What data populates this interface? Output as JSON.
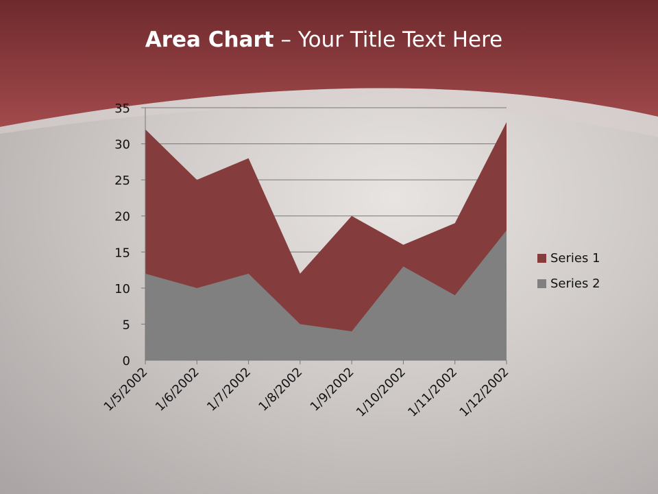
{
  "slide": {
    "title_bold": "Area Chart",
    "title_rest": " – Your Title Text Here"
  },
  "colors": {
    "header": "#8c3a3c",
    "series1": "#843c3c",
    "series2": "#808080"
  },
  "chart_data": {
    "type": "area",
    "categories": [
      "1/5/2002",
      "1/6/2002",
      "1/7/2002",
      "1/8/2002",
      "1/9/2002",
      "1/10/2002",
      "1/11/2002",
      "1/12/2002"
    ],
    "series": [
      {
        "name": "Series 1",
        "values": [
          32,
          25,
          28,
          12,
          20,
          16,
          19,
          33
        ]
      },
      {
        "name": "Series 2",
        "values": [
          12,
          10,
          12,
          5,
          4,
          13,
          9,
          18
        ]
      }
    ],
    "ylim": [
      0,
      35
    ],
    "yticks": [
      "0",
      "5",
      "10",
      "15",
      "20",
      "25",
      "30",
      "35"
    ],
    "grid": true,
    "legend": "right"
  }
}
